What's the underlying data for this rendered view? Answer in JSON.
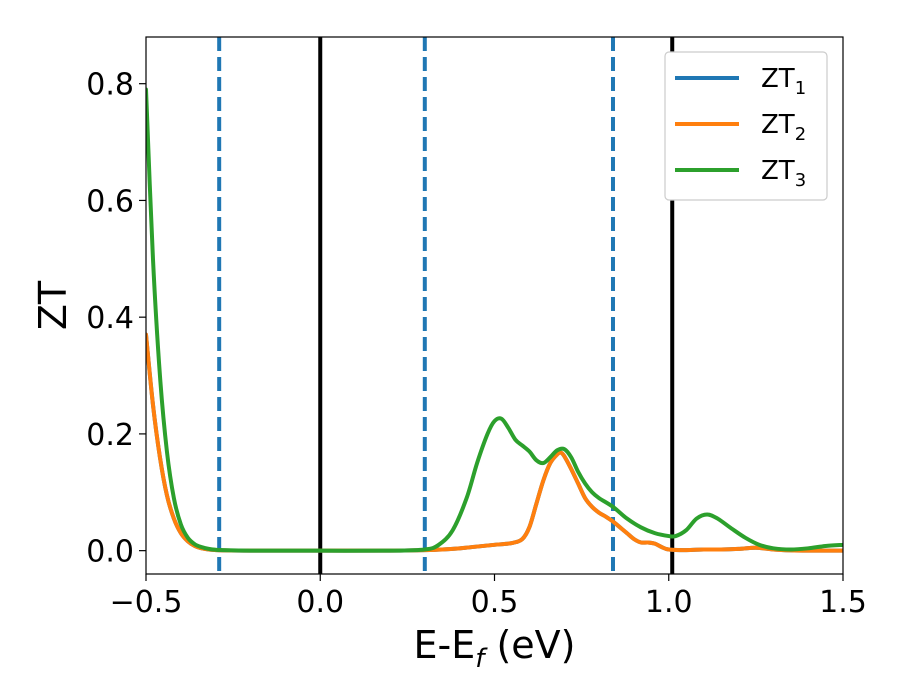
{
  "chart_data": {
    "type": "line",
    "title": "",
    "xlabel": "E-E_f (eV)",
    "xlabel_main": "E-E",
    "xlabel_sub": "f",
    "xlabel_unit": " (eV)",
    "ylabel": "ZT",
    "xlim": [
      -0.5,
      1.5
    ],
    "ylim": [
      -0.04,
      0.88
    ],
    "xticks": [
      -0.5,
      0.0,
      0.5,
      1.0,
      1.5
    ],
    "xtick_labels": [
      "−0.5",
      "0.0",
      "0.5",
      "1.0",
      "1.5"
    ],
    "yticks": [
      0.0,
      0.2,
      0.4,
      0.6,
      0.8
    ],
    "ytick_labels": [
      "0.0",
      "0.2",
      "0.4",
      "0.6",
      "0.8"
    ],
    "grid": false,
    "legend_position": "top-right",
    "vlines_solid": [
      0.0,
      1.01
    ],
    "vlines_dashed": [
      -0.29,
      0.3,
      0.84
    ],
    "vline_solid_color": "#000000",
    "vline_dashed_color": "#1f77b4",
    "series": [
      {
        "name": "ZT1",
        "legend_main": "ZT",
        "legend_sub": "1",
        "color": "#1f77b4",
        "x": [
          -0.5,
          -0.48,
          -0.46,
          -0.44,
          -0.42,
          -0.4,
          -0.38,
          -0.36,
          -0.34,
          -0.32,
          -0.3,
          -0.28,
          -0.2,
          0.0,
          0.2,
          0.3,
          0.35,
          0.4,
          0.45,
          0.5,
          0.55,
          0.58,
          0.6,
          0.62,
          0.64,
          0.66,
          0.68,
          0.69,
          0.7,
          0.72,
          0.74,
          0.76,
          0.78,
          0.8,
          0.82,
          0.84,
          0.86,
          0.88,
          0.9,
          0.92,
          0.94,
          0.96,
          0.98,
          1.0,
          1.05,
          1.1,
          1.15,
          1.2,
          1.25,
          1.3,
          1.35,
          1.4,
          1.45,
          1.5
        ],
        "y": [
          0.37,
          0.25,
          0.16,
          0.095,
          0.055,
          0.03,
          0.016,
          0.008,
          0.004,
          0.002,
          0.001,
          0.0005,
          0.0,
          0.0,
          0.0,
          0.001,
          0.002,
          0.004,
          0.007,
          0.01,
          0.013,
          0.02,
          0.04,
          0.08,
          0.12,
          0.15,
          0.165,
          0.168,
          0.162,
          0.14,
          0.115,
          0.09,
          0.075,
          0.065,
          0.058,
          0.05,
          0.04,
          0.03,
          0.02,
          0.014,
          0.014,
          0.012,
          0.006,
          0.002,
          0.001,
          0.002,
          0.002,
          0.003,
          0.005,
          0.002,
          0.0005,
          0.0,
          0.0,
          0.0
        ]
      },
      {
        "name": "ZT2",
        "legend_main": "ZT",
        "legend_sub": "2",
        "color": "#ff7f0e",
        "x": [
          -0.5,
          -0.48,
          -0.46,
          -0.44,
          -0.42,
          -0.4,
          -0.38,
          -0.36,
          -0.34,
          -0.32,
          -0.3,
          -0.28,
          -0.2,
          0.0,
          0.2,
          0.3,
          0.35,
          0.4,
          0.45,
          0.5,
          0.55,
          0.58,
          0.6,
          0.62,
          0.64,
          0.66,
          0.68,
          0.69,
          0.7,
          0.72,
          0.74,
          0.76,
          0.78,
          0.8,
          0.82,
          0.84,
          0.86,
          0.88,
          0.9,
          0.92,
          0.94,
          0.96,
          0.98,
          1.0,
          1.05,
          1.1,
          1.15,
          1.2,
          1.25,
          1.3,
          1.35,
          1.4,
          1.45,
          1.5
        ],
        "y": [
          0.37,
          0.25,
          0.16,
          0.095,
          0.055,
          0.03,
          0.016,
          0.008,
          0.004,
          0.002,
          0.001,
          0.0005,
          0.0,
          0.0,
          0.0,
          0.001,
          0.002,
          0.004,
          0.007,
          0.01,
          0.013,
          0.02,
          0.04,
          0.08,
          0.12,
          0.15,
          0.165,
          0.168,
          0.162,
          0.14,
          0.115,
          0.09,
          0.075,
          0.065,
          0.058,
          0.05,
          0.04,
          0.03,
          0.02,
          0.014,
          0.014,
          0.012,
          0.006,
          0.002,
          0.001,
          0.002,
          0.002,
          0.003,
          0.005,
          0.002,
          0.0005,
          0.0,
          0.0,
          0.0
        ]
      },
      {
        "name": "ZT3",
        "legend_main": "ZT",
        "legend_sub": "3",
        "color": "#2ca02c",
        "x": [
          -0.5,
          -0.48,
          -0.46,
          -0.44,
          -0.42,
          -0.4,
          -0.38,
          -0.36,
          -0.34,
          -0.32,
          -0.3,
          -0.28,
          -0.2,
          0.0,
          0.2,
          0.3,
          0.34,
          0.38,
          0.42,
          0.45,
          0.48,
          0.5,
          0.52,
          0.54,
          0.56,
          0.58,
          0.6,
          0.62,
          0.64,
          0.66,
          0.68,
          0.7,
          0.72,
          0.74,
          0.76,
          0.78,
          0.8,
          0.84,
          0.88,
          0.92,
          0.96,
          1.0,
          1.02,
          1.05,
          1.08,
          1.11,
          1.14,
          1.18,
          1.22,
          1.26,
          1.3,
          1.35,
          1.4,
          1.45,
          1.5
        ],
        "y": [
          0.79,
          0.5,
          0.3,
          0.17,
          0.09,
          0.045,
          0.022,
          0.011,
          0.006,
          0.003,
          0.0015,
          0.001,
          0.0,
          0.0,
          0.0,
          0.002,
          0.01,
          0.035,
          0.09,
          0.15,
          0.2,
          0.222,
          0.226,
          0.21,
          0.19,
          0.18,
          0.17,
          0.155,
          0.15,
          0.16,
          0.172,
          0.174,
          0.16,
          0.135,
          0.115,
          0.1,
          0.09,
          0.075,
          0.055,
          0.04,
          0.03,
          0.025,
          0.025,
          0.035,
          0.055,
          0.062,
          0.055,
          0.038,
          0.022,
          0.01,
          0.004,
          0.002,
          0.004,
          0.008,
          0.01
        ]
      }
    ]
  }
}
